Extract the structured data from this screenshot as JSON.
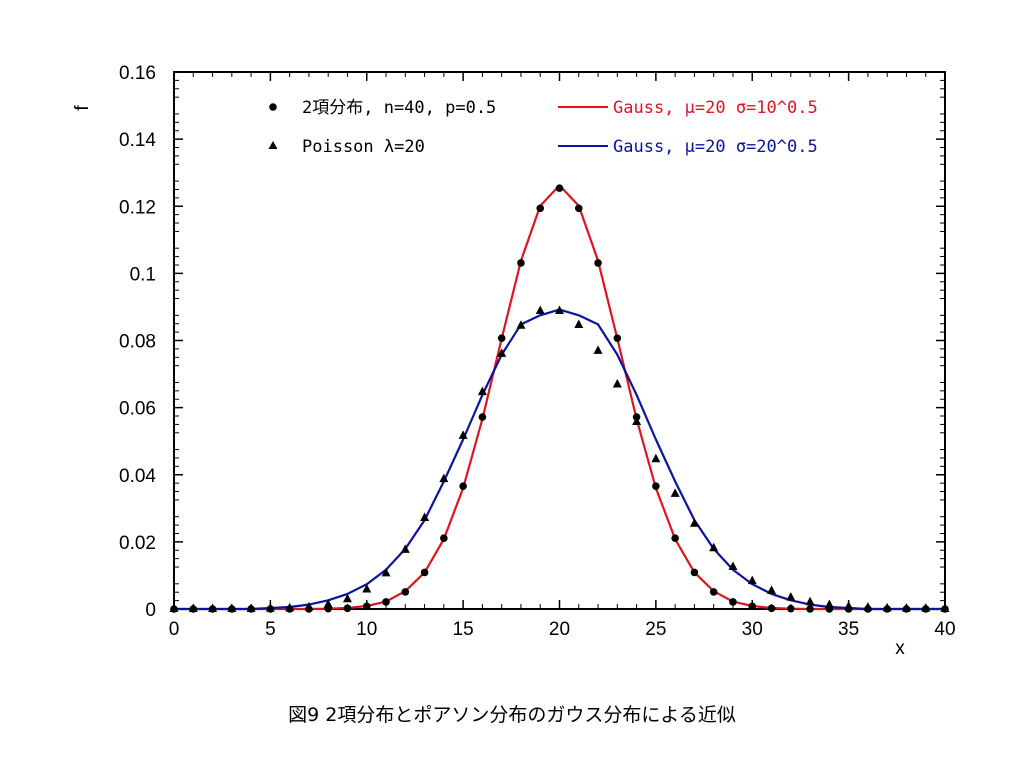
{
  "caption": "図9 2項分布とポアソン分布のガウス分布による近似",
  "chart_data": {
    "type": "scatter",
    "xlabel": "x",
    "ylabel": "f",
    "xlim": [
      0,
      40
    ],
    "ylim": [
      0,
      0.16
    ],
    "x_ticks": [
      "0",
      "5",
      "10",
      "15",
      "20",
      "25",
      "30",
      "35",
      "40"
    ],
    "y_ticks": [
      "0",
      "0.02",
      "0.04",
      "0.06",
      "0.08",
      "0.1",
      "0.12",
      "0.14",
      "0.16"
    ],
    "grid": false,
    "colors": {
      "red": "#e0141e",
      "blue": "#0a14a0",
      "black": "#000000"
    },
    "series": [
      {
        "name": "2項分布, n=40, p=0.5",
        "kind": "circle-markers",
        "x": [
          0,
          1,
          2,
          3,
          4,
          5,
          6,
          7,
          8,
          9,
          10,
          11,
          12,
          13,
          14,
          15,
          16,
          17,
          18,
          19,
          20,
          21,
          22,
          23,
          24,
          25,
          26,
          27,
          28,
          29,
          30,
          31,
          32,
          33,
          34,
          35,
          36,
          37,
          38,
          39,
          40
        ],
        "y": [
          0,
          0,
          0,
          0,
          0,
          0,
          0,
          0,
          0.0001,
          0.0002,
          0.0008,
          0.0021,
          0.0051,
          0.0109,
          0.0211,
          0.0366,
          0.0572,
          0.0807,
          0.1031,
          0.1194,
          0.1254,
          0.1194,
          0.1031,
          0.0807,
          0.0572,
          0.0366,
          0.0211,
          0.0109,
          0.0051,
          0.0021,
          0.0008,
          0.0002,
          0.0001,
          0,
          0,
          0,
          0,
          0,
          0,
          0,
          0
        ]
      },
      {
        "name": "Poisson λ=20",
        "kind": "triangle-markers",
        "x": [
          0,
          1,
          2,
          3,
          4,
          5,
          6,
          7,
          8,
          9,
          10,
          11,
          12,
          13,
          14,
          15,
          16,
          17,
          18,
          19,
          20,
          21,
          22,
          23,
          24,
          25,
          26,
          27,
          28,
          29,
          30,
          31,
          32,
          33,
          34,
          35,
          36,
          37,
          38,
          39,
          40
        ],
        "y": [
          0,
          0,
          0,
          0,
          0,
          0.0001,
          0.0002,
          0.0005,
          0.0013,
          0.0029,
          0.0058,
          0.0106,
          0.0176,
          0.0271,
          0.0387,
          0.0516,
          0.0646,
          0.076,
          0.0844,
          0.0888,
          0.0888,
          0.0846,
          0.0769,
          0.0669,
          0.0557,
          0.0446,
          0.0343,
          0.0254,
          0.0181,
          0.0125,
          0.0083,
          0.0054,
          0.0034,
          0.002,
          0.0012,
          0.0007,
          0.0004,
          0.0002,
          0.0001,
          0.0001,
          0
        ]
      },
      {
        "name": "Gauss, μ=20 σ=10^0.5",
        "kind": "line",
        "color": "#e0141e",
        "x": [
          0,
          1,
          2,
          3,
          4,
          5,
          6,
          7,
          8,
          9,
          10,
          11,
          12,
          13,
          14,
          15,
          16,
          17,
          18,
          19,
          20,
          21,
          22,
          23,
          24,
          25,
          26,
          27,
          28,
          29,
          30,
          31,
          32,
          33,
          34,
          35,
          36,
          37,
          38,
          39,
          40
        ],
        "y": [
          0,
          0,
          0,
          0,
          0,
          0,
          0,
          0,
          0.0001,
          0.0003,
          0.0009,
          0.0022,
          0.0053,
          0.0109,
          0.0208,
          0.036,
          0.0566,
          0.0806,
          0.1038,
          0.1201,
          0.1262,
          0.1201,
          0.1038,
          0.0806,
          0.0566,
          0.036,
          0.0208,
          0.0109,
          0.0053,
          0.0022,
          0.0009,
          0.0003,
          0.0001,
          0,
          0,
          0,
          0,
          0,
          0,
          0,
          0
        ]
      },
      {
        "name": "Gauss, μ=20 σ=20^0.5",
        "kind": "line",
        "color": "#0a14a0",
        "x": [
          0,
          1,
          2,
          3,
          4,
          5,
          6,
          7,
          8,
          9,
          10,
          11,
          12,
          13,
          14,
          15,
          16,
          17,
          18,
          19,
          20,
          21,
          22,
          23,
          24,
          25,
          26,
          27,
          28,
          29,
          30,
          31,
          32,
          33,
          34,
          35,
          36,
          37,
          38,
          39,
          40
        ],
        "y": [
          0,
          0,
          0,
          0,
          0,
          0.0003,
          0.0006,
          0.0013,
          0.0026,
          0.0045,
          0.0074,
          0.0117,
          0.0179,
          0.0265,
          0.038,
          0.0505,
          0.0638,
          0.0758,
          0.0848,
          0.0875,
          0.0892,
          0.0875,
          0.0848,
          0.0758,
          0.0638,
          0.0505,
          0.038,
          0.0265,
          0.0179,
          0.0117,
          0.0074,
          0.0045,
          0.0026,
          0.0013,
          0.0006,
          0.0003,
          0,
          0,
          0,
          0,
          0
        ]
      }
    ]
  }
}
